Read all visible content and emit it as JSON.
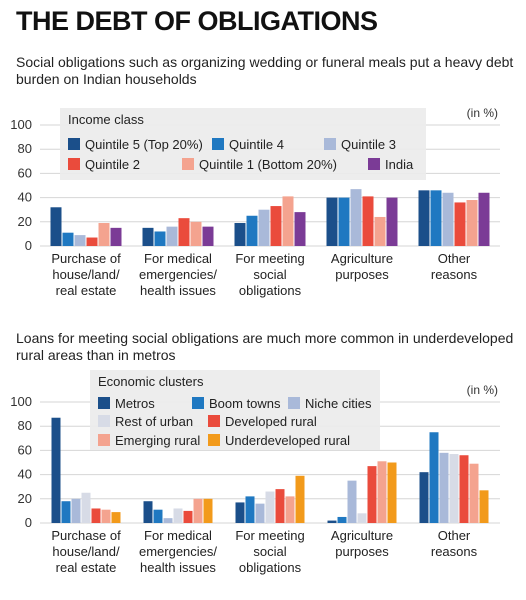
{
  "title": "THE DEBT OF OBLIGATIONS",
  "colors": {
    "grid": "#d6d6d6",
    "legend_bg": "#ececec"
  },
  "chart_data": [
    {
      "type": "bar",
      "subtitle": "Social obligations such as organizing wedding or funeral meals put a heavy debt burden on Indian households",
      "unit_label": "(in %)",
      "legend_title": "Income class",
      "ylim": [
        0,
        100
      ],
      "yticks": [
        0,
        20,
        40,
        60,
        80,
        100
      ],
      "grid": true,
      "legend_position": "top",
      "categories": [
        [
          "Purchase of",
          "house/land/",
          "real estate"
        ],
        [
          "For medical",
          "emergencies/",
          "health issues"
        ],
        [
          "For meeting",
          "social",
          "obligations"
        ],
        [
          "Agriculture",
          "purposes"
        ],
        [
          "Other",
          "reasons"
        ]
      ],
      "series": [
        {
          "name": "Quintile 5 (Top 20%)",
          "color": "#1b4f8a",
          "values": [
            32,
            15,
            19,
            40,
            46
          ]
        },
        {
          "name": "Quintile 4",
          "color": "#1f78c1",
          "values": [
            11,
            12,
            25,
            40,
            46
          ]
        },
        {
          "name": "Quintile 3",
          "color": "#a9b9d9",
          "values": [
            9,
            16,
            30,
            47,
            44
          ]
        },
        {
          "name": "Quintile 2",
          "color": "#ea4b3c",
          "values": [
            7,
            23,
            33,
            41,
            36
          ]
        },
        {
          "name": "Quintile 1 (Bottom 20%)",
          "color": "#f4a38f",
          "values": [
            19,
            20,
            41,
            24,
            38
          ]
        },
        {
          "name": "India",
          "color": "#7b3b96",
          "values": [
            15,
            16,
            28,
            40,
            44
          ]
        }
      ]
    },
    {
      "type": "bar",
      "subtitle": "Loans for meeting social obligations are much more common in underdeveloped rural areas than in metros",
      "unit_label": "(in %)",
      "legend_title": "Economic clusters",
      "ylim": [
        0,
        100
      ],
      "yticks": [
        0,
        20,
        40,
        60,
        80,
        100
      ],
      "grid": true,
      "legend_position": "top",
      "categories": [
        [
          "Purchase of",
          "house/land/",
          "real estate"
        ],
        [
          "For medical",
          "emergencies/",
          "health issues"
        ],
        [
          "For meeting",
          "social",
          "obligations"
        ],
        [
          "Agriculture",
          "purposes"
        ],
        [
          "Other",
          "reasons"
        ]
      ],
      "series": [
        {
          "name": "Metros",
          "color": "#1b4f8a",
          "values": [
            87,
            18,
            17,
            2,
            42
          ]
        },
        {
          "name": "Boom towns",
          "color": "#1f78c1",
          "values": [
            18,
            11,
            22,
            5,
            75
          ]
        },
        {
          "name": "Niche cities",
          "color": "#a9b9d9",
          "values": [
            20,
            4,
            16,
            35,
            58
          ]
        },
        {
          "name": "Rest of urban",
          "color": "#d7dbe6",
          "values": [
            25,
            12,
            26,
            8,
            57
          ]
        },
        {
          "name": "Developed rural",
          "color": "#ea4b3c",
          "values": [
            12,
            10,
            28,
            47,
            56
          ]
        },
        {
          "name": "Emerging rural",
          "color": "#f4a38f",
          "values": [
            11,
            20,
            22,
            51,
            49
          ]
        },
        {
          "name": "Underdeveloped rural",
          "color": "#f29a1b",
          "values": [
            9,
            20,
            39,
            50,
            27
          ]
        }
      ]
    }
  ]
}
